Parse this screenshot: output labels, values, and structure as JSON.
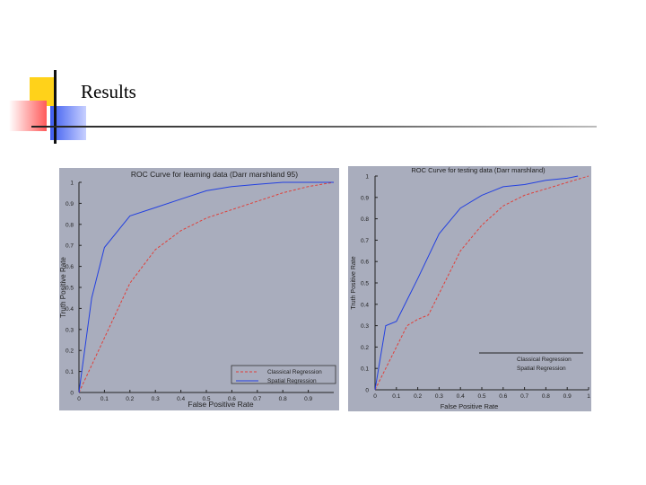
{
  "slide": {
    "title": "Results"
  },
  "colors": {
    "classical": "#e0403a",
    "spatial": "#2340e0",
    "panel_bg": "#a9adbd",
    "accent_yellow": "#ffd21a",
    "accent_red": "#ff6a6a",
    "accent_blue": "#3c5cf0"
  },
  "chart_data": [
    {
      "type": "line",
      "title": "ROC Curve for learning data (Darr marshland 95)",
      "xlabel": "False Positive Rate",
      "ylabel": "Truth Positive Rate",
      "xlim": [
        0,
        1
      ],
      "ylim": [
        0,
        1
      ],
      "x_ticks": [
        "0",
        "0.1",
        "0.2",
        "0.3",
        "0.4",
        "0.5",
        "0.6",
        "0.7",
        "0.8",
        "0.9"
      ],
      "y_ticks": [
        "0",
        "0.1",
        "0.2",
        "0.3",
        "0.4",
        "0.5",
        "0.6",
        "0.7",
        "0.8",
        "0.9",
        "1"
      ],
      "legend_position": "bottom-right",
      "series": [
        {
          "name": "Classical Regression",
          "style": "dashed",
          "color": "#e0403a",
          "x": [
            0,
            0.1,
            0.2,
            0.3,
            0.4,
            0.5,
            0.6,
            0.7,
            0.8,
            0.9,
            1.0
          ],
          "y": [
            0,
            0.26,
            0.52,
            0.68,
            0.77,
            0.83,
            0.87,
            0.91,
            0.95,
            0.98,
            1.0
          ]
        },
        {
          "name": "Spatial Regression",
          "style": "solid",
          "color": "#2340e0",
          "x": [
            0,
            0.05,
            0.1,
            0.2,
            0.3,
            0.4,
            0.5,
            0.6,
            0.7,
            0.8,
            1.0
          ],
          "y": [
            0,
            0.45,
            0.69,
            0.84,
            0.88,
            0.92,
            0.96,
            0.98,
            0.99,
            1.0,
            1.0
          ]
        }
      ]
    },
    {
      "type": "line",
      "title": "ROC Curve for testing data (Darr marshland)",
      "xlabel": "False Positive Rate",
      "ylabel": "Truth Positive Rate",
      "xlim": [
        0,
        1
      ],
      "ylim": [
        0,
        1
      ],
      "x_ticks": [
        "0",
        "0.1",
        "0.2",
        "0.3",
        "0.4",
        "0.5",
        "0.6",
        "0.7",
        "0.8",
        "0.9",
        "1"
      ],
      "y_ticks": [
        "0",
        "0.1",
        "0.2",
        "0.3",
        "0.4",
        "0.5",
        "0.6",
        "0.7",
        "0.8",
        "0.9",
        "1"
      ],
      "legend_position": "bottom-right",
      "series": [
        {
          "name": "Classical Regression",
          "style": "dashed",
          "color": "#e0403a",
          "x": [
            0,
            0.05,
            0.1,
            0.15,
            0.2,
            0.25,
            0.3,
            0.4,
            0.5,
            0.6,
            0.7,
            0.8,
            0.9,
            1.0
          ],
          "y": [
            0,
            0.1,
            0.2,
            0.3,
            0.33,
            0.35,
            0.45,
            0.65,
            0.77,
            0.86,
            0.91,
            0.94,
            0.97,
            1.0
          ]
        },
        {
          "name": "Spatial Regression",
          "style": "solid",
          "color": "#2340e0",
          "x": [
            0,
            0.05,
            0.1,
            0.15,
            0.2,
            0.3,
            0.4,
            0.5,
            0.55,
            0.6,
            0.7,
            0.8,
            0.9,
            0.95
          ],
          "y": [
            0,
            0.3,
            0.32,
            0.42,
            0.52,
            0.73,
            0.85,
            0.91,
            0.93,
            0.95,
            0.96,
            0.98,
            0.99,
            1.0
          ]
        }
      ]
    }
  ]
}
